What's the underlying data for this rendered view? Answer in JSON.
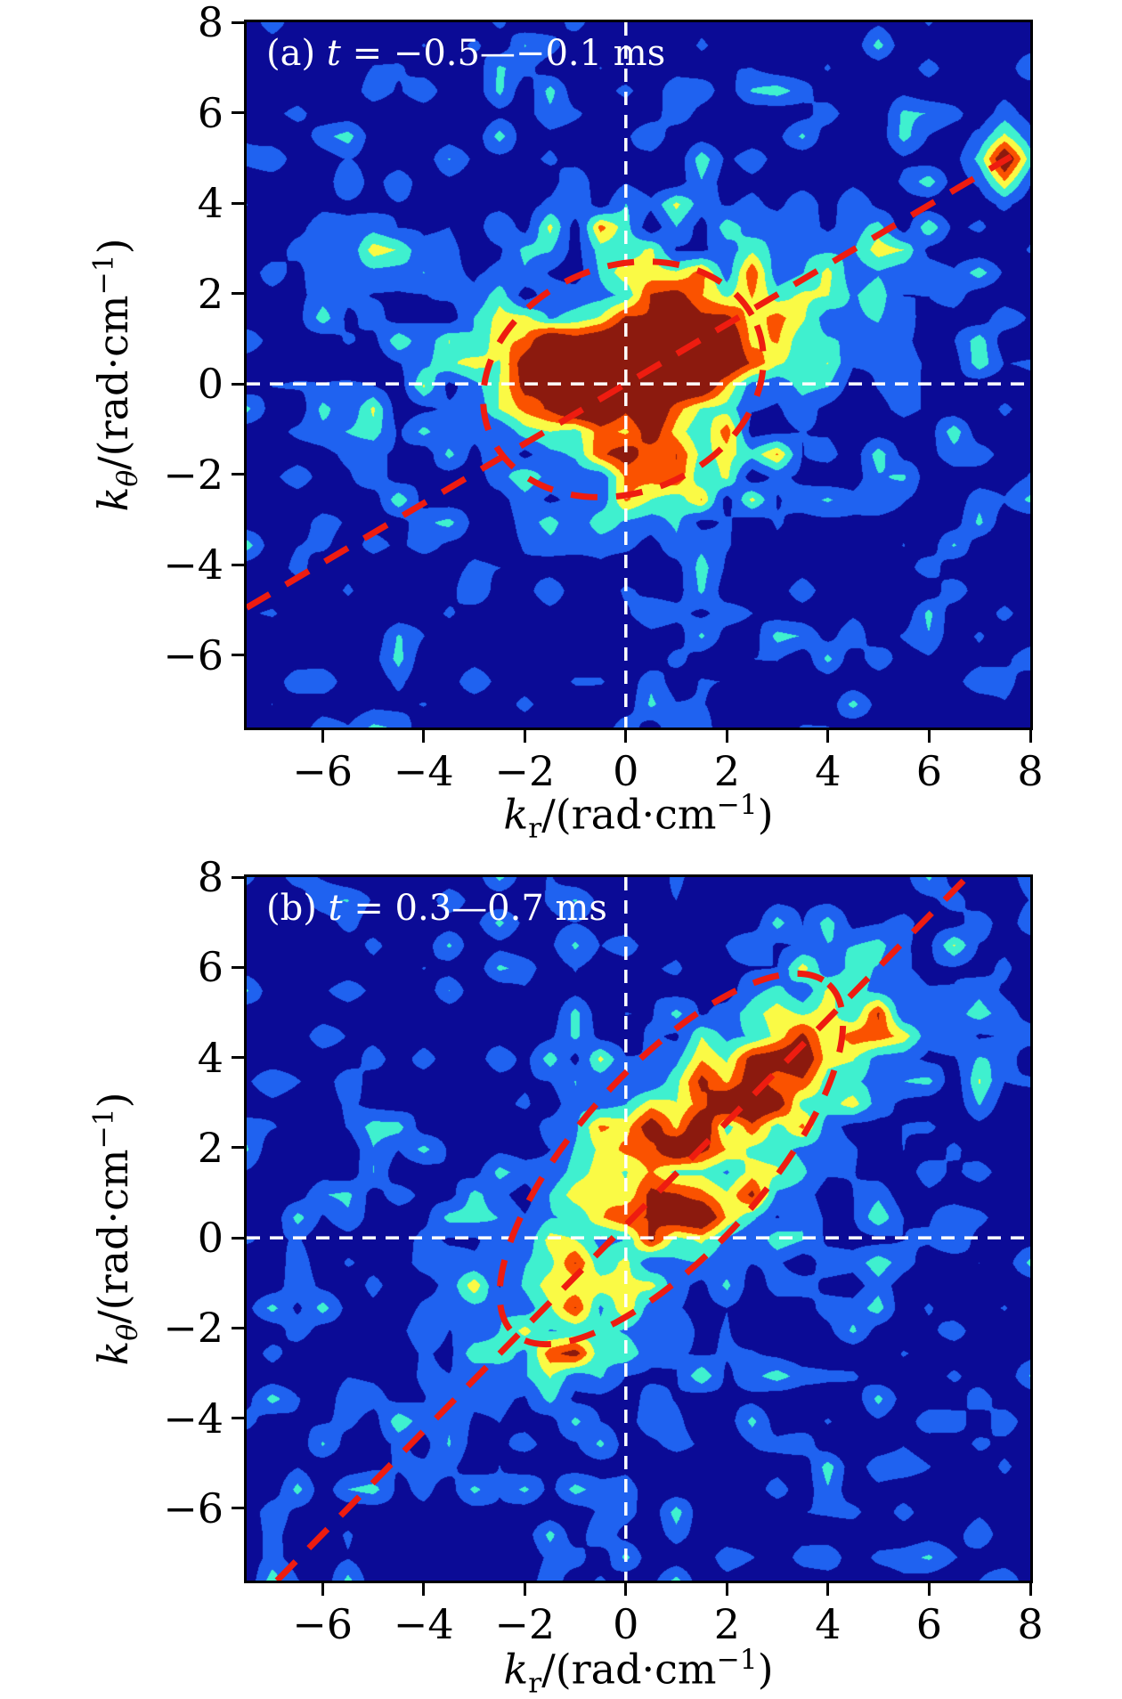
{
  "chart_data": {
    "type": "heatmap",
    "description": "Two filled-contour 2D wavenumber spectra S(kr, ktheta) with jet-style palette, white dashed zero-axes crosshair, red dashed reference line and red dashed ellipse in each panel.",
    "palette": [
      "#0b0b96",
      "#1f62f0",
      "#3ff0cf",
      "#fafa45",
      "#fa5200",
      "#8c1a0e"
    ],
    "levels": [
      0.2,
      0.45,
      0.66,
      0.85,
      1.05
    ],
    "annotation_color": "#ee1c10",
    "crosshair_color": "#ffffff",
    "grid": {
      "nx": 32,
      "ny": 32
    },
    "xlabel": {
      "k": "k",
      "sub": "r",
      "mid": "/(rad·cm",
      "sup": "−1",
      "end": ")"
    },
    "ylabel": {
      "k": "k",
      "sub": "θ",
      "mid": "/(rad·cm",
      "sup": "−1",
      "end": ")"
    },
    "panels": [
      {
        "id": "a",
        "title": {
          "prefix": "(a) ",
          "var": "t",
          "rest": " = −0.5—−0.1 ms",
          "full": "(a) t = −0.5—−0.1 ms"
        },
        "xlim": [
          -7.5,
          8
        ],
        "ylim": [
          -7.6,
          8
        ],
        "xticks": {
          "values": [
            -6,
            -4,
            -2,
            0,
            2,
            4,
            6,
            8
          ],
          "labels": [
            "−6",
            "−4",
            "−2",
            "0",
            "2",
            "4",
            "6",
            "8"
          ]
        },
        "yticks": {
          "values": [
            8,
            6,
            4,
            2,
            0,
            -2,
            -4,
            -6
          ],
          "labels": [
            "8",
            "6",
            "4",
            "2",
            "0",
            "−2",
            "−4",
            "−6"
          ]
        },
        "crosshair": {
          "x": 0,
          "y": 0
        },
        "ref_line": {
          "x1": -7.5,
          "y1": -4.95,
          "x2": 7.62,
          "y2": 5.03
        },
        "ellipse": {
          "cx": -0.05,
          "cy": 0.1,
          "rx": 2.85,
          "ry": 2.5,
          "angle_deg": 22
        },
        "peak": {
          "x": 0.6,
          "y": 0.7,
          "note": "broad high-intensity core around origin, dark-red maximum"
        },
        "field": {
          "speckle": {
            "seed": 11,
            "amp": 0.58,
            "power": 4
          },
          "noise_blobs": [
            {
              "x": 0.2,
              "y": 0.4,
              "sx": 3.3,
              "sy": 2.8,
              "rot": 0,
              "amp": 0.85,
              "seed": 29
            }
          ],
          "blobs": [
            {
              "x": 0.9,
              "y": 0.85,
              "sx": 1.45,
              "sy": 0.85,
              "rot": 10,
              "amp": 1.3
            },
            {
              "x": -0.9,
              "y": 0.25,
              "sx": 1.05,
              "sy": 0.6,
              "rot": 0,
              "amp": 1.05
            },
            {
              "x": 0.4,
              "y": -1.3,
              "sx": 0.8,
              "sy": 0.85,
              "rot": 0,
              "amp": 0.7
            },
            {
              "x": 7.5,
              "y": 5.0,
              "sx": 0.4,
              "sy": 0.4,
              "rot": 0,
              "amp": 1.15
            },
            {
              "x": -4.8,
              "y": 2.8,
              "sx": 1.2,
              "sy": 0.8,
              "rot": 0,
              "amp": 0.28
            },
            {
              "x": 4.3,
              "y": 2.2,
              "sx": 1.0,
              "sy": 0.8,
              "rot": 0,
              "amp": 0.3
            }
          ],
          "ridge": null
        }
      },
      {
        "id": "b",
        "title": {
          "prefix": "(b) ",
          "var": "t",
          "rest": " = 0.3—0.7 ms",
          "full": "(b) t = 0.3—0.7 ms"
        },
        "xlim": [
          -7.5,
          8
        ],
        "ylim": [
          -7.6,
          8
        ],
        "xticks": {
          "values": [
            -6,
            -4,
            -2,
            0,
            2,
            4,
            6,
            8
          ],
          "labels": [
            "−6",
            "−4",
            "−2",
            "0",
            "2",
            "4",
            "6",
            "8"
          ]
        },
        "yticks": {
          "values": [
            8,
            6,
            4,
            2,
            0,
            -2,
            -4,
            -6
          ],
          "labels": [
            "8",
            "6",
            "4",
            "2",
            "0",
            "−2",
            "−4",
            "−6"
          ]
        },
        "crosshair": {
          "x": 0,
          "y": 0
        },
        "ref_line": {
          "x1": -6.9,
          "y1": -7.6,
          "x2": 6.75,
          "y2": 8.0
        },
        "ellipse": {
          "cx": 0.9,
          "cy": 1.75,
          "rx": 4.65,
          "ry": 2.05,
          "angle_deg": 48
        },
        "peak": {
          "x": 1.1,
          "y": 0.6,
          "note": "patchy diagonal ridge of activity along the reference line, strongest near (1, 0.6)"
        },
        "field": {
          "speckle": {
            "seed": 13,
            "amp": 0.58,
            "power": 4
          },
          "noise_blobs": [
            {
              "x": 1.6,
              "y": 1.8,
              "sx": 4.2,
              "sy": 2.4,
              "rot": 45,
              "amp": 0.55,
              "seed": 17
            },
            {
              "x": -2.5,
              "y": -3.5,
              "sx": 2.0,
              "sy": 1.5,
              "rot": 40,
              "amp": 0.35,
              "seed": 23
            }
          ],
          "blobs": [
            {
              "x": 1.15,
              "y": 0.6,
              "sx": 0.6,
              "sy": 0.5,
              "rot": 0,
              "amp": 0.6
            },
            {
              "x": 0.0,
              "y": 2.5,
              "sx": 0.5,
              "sy": 0.38,
              "rot": 0,
              "amp": 0.55
            },
            {
              "x": 3.5,
              "y": 4.0,
              "sx": 0.6,
              "sy": 0.5,
              "rot": 0,
              "amp": 0.5
            },
            {
              "x": 4.7,
              "y": 4.6,
              "sx": 0.55,
              "sy": 0.4,
              "rot": 0,
              "amp": 0.35
            },
            {
              "x": -1.1,
              "y": -2.7,
              "sx": 0.55,
              "sy": 0.45,
              "rot": 0,
              "amp": 0.35
            },
            {
              "x": 2.5,
              "y": 3.2,
              "sx": 0.6,
              "sy": 0.5,
              "rot": 0,
              "amp": 0.35
            }
          ],
          "ridge": {
            "x0": 0,
            "y0": 0.3,
            "angle_deg": 48.5,
            "w": 1.15,
            "center_t": 1.9,
            "len_t": 3.3,
            "amp": 1.0,
            "mix": 0.3,
            "seed": 31
          }
        }
      }
    ]
  }
}
